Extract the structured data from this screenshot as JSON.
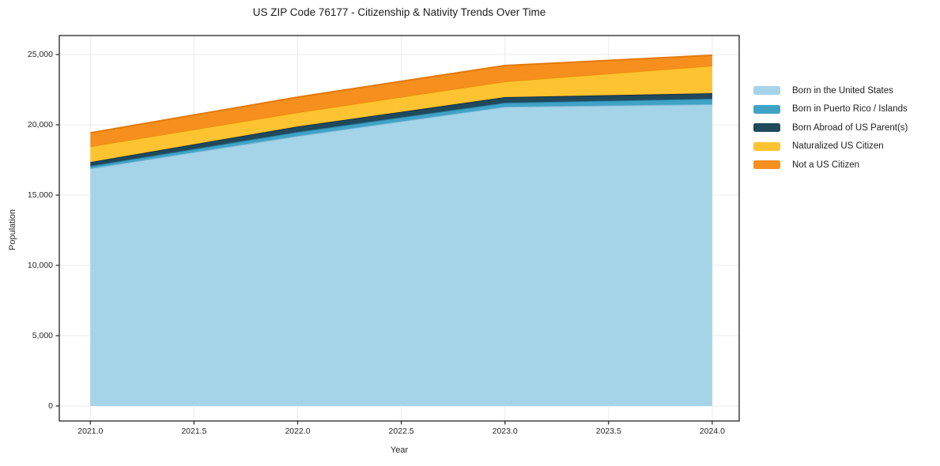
{
  "chart_data": {
    "type": "area",
    "stacked": true,
    "title": "US ZIP Code 76177 - Citizenship & Nativity Trends Over Time",
    "xlabel": "Year",
    "ylabel": "Population",
    "x": [
      2021,
      2022,
      2023,
      2024
    ],
    "series": [
      {
        "name": "Born in the United States",
        "color": "#a5d3e8",
        "edge": "#7db8d6",
        "values": [
          16900,
          19210,
          21290,
          21460
        ]
      },
      {
        "name": "Born in Puerto Rico / Islands",
        "color": "#3fa3c6",
        "edge": "#2b86a6",
        "values": [
          170,
          280,
          280,
          395
        ]
      },
      {
        "name": "Born Abroad of US Parent(s)",
        "color": "#20495c",
        "edge": "#142f3e",
        "values": [
          280,
          395,
          395,
          395
        ]
      },
      {
        "name": "Naturalized US Citizen",
        "color": "#fdc330",
        "edge": "#ec8f0c",
        "values": [
          1120,
          1010,
          1125,
          1965
        ]
      },
      {
        "name": "Not a US Citizen",
        "color": "#f78f1e",
        "edge": "#e27a08",
        "values": [
          960,
          1070,
          1125,
          730
        ]
      }
    ],
    "totals": [
      19430,
      21965,
      24215,
      24945
    ],
    "xticks": {
      "values": [
        2021.0,
        2021.5,
        2022.0,
        2022.5,
        2023.0,
        2023.5,
        2024.0
      ],
      "labels": [
        "2021.0",
        "2021.5",
        "2022.0",
        "2022.5",
        "2023.0",
        "2023.5",
        "2024.0"
      ]
    },
    "yticks": {
      "values": [
        0,
        5000,
        10000,
        15000,
        20000,
        25000
      ],
      "labels": [
        "0",
        "5,000",
        "10,000",
        "15,000",
        "20,000",
        "25,000"
      ]
    },
    "xlim": [
      2020.85,
      2024.13
    ],
    "ylim": [
      -1070,
      26350
    ],
    "grid": true,
    "legend_position": "right-outside"
  },
  "colors": {
    "background": "#ffffff",
    "grid": "#ebebeb",
    "spine": "#222222",
    "text": "#1c1c1c",
    "tick_text": "#262626"
  }
}
